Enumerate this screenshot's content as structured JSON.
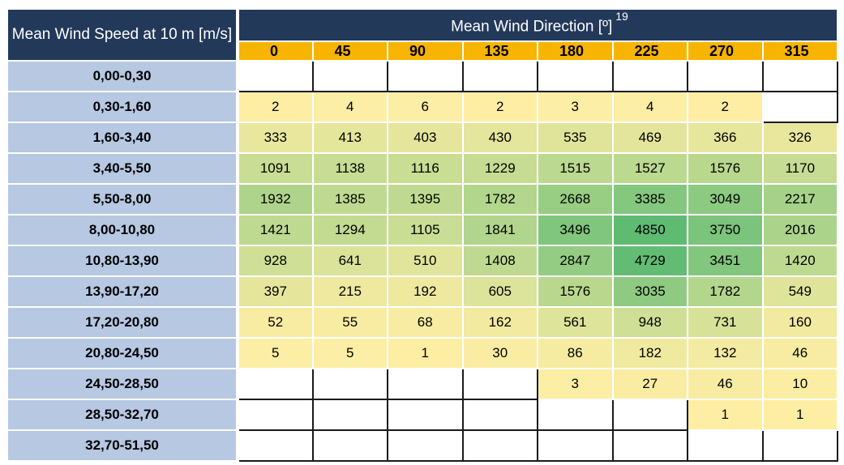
{
  "table": {
    "corner_label": "Mean Wind Speed at 10 m [m/s]",
    "header_label": "Mean Wind Direction [º]",
    "footnote": "19",
    "directions": [
      "0",
      "45",
      "90",
      "135",
      "180",
      "225",
      "270",
      "315"
    ],
    "rows": [
      {
        "speed": "0,00-0,30",
        "values": [
          "",
          "",
          "",
          "",
          "",
          "",
          "",
          ""
        ]
      },
      {
        "speed": "0,30-1,60",
        "values": [
          "2",
          "4",
          "6",
          "2",
          "3",
          "4",
          "2",
          ""
        ]
      },
      {
        "speed": "1,60-3,40",
        "values": [
          "333",
          "413",
          "403",
          "430",
          "535",
          "469",
          "366",
          "326"
        ]
      },
      {
        "speed": "3,40-5,50",
        "values": [
          "1091",
          "1138",
          "1116",
          "1229",
          "1515",
          "1527",
          "1576",
          "1170"
        ]
      },
      {
        "speed": "5,50-8,00",
        "values": [
          "1932",
          "1385",
          "1395",
          "1782",
          "2668",
          "3385",
          "3049",
          "2217"
        ]
      },
      {
        "speed": "8,00-10,80",
        "values": [
          "1421",
          "1294",
          "1105",
          "1841",
          "3496",
          "4850",
          "3750",
          "2016"
        ]
      },
      {
        "speed": "10,80-13,90",
        "values": [
          "928",
          "641",
          "510",
          "1408",
          "2847",
          "4729",
          "3451",
          "1420"
        ]
      },
      {
        "speed": "13,90-17,20",
        "values": [
          "397",
          "215",
          "192",
          "605",
          "1576",
          "3035",
          "1782",
          "549"
        ]
      },
      {
        "speed": "17,20-20,80",
        "values": [
          "52",
          "55",
          "68",
          "162",
          "561",
          "948",
          "731",
          "160"
        ]
      },
      {
        "speed": "20,80-24,50",
        "values": [
          "5",
          "5",
          "1",
          "30",
          "86",
          "182",
          "132",
          "46"
        ]
      },
      {
        "speed": "24,50-28,50",
        "values": [
          "",
          "",
          "",
          "",
          "3",
          "27",
          "46",
          "10"
        ]
      },
      {
        "speed": "28,50-32,70",
        "values": [
          "",
          "",
          "",
          "",
          "",
          "",
          "1",
          "1"
        ]
      },
      {
        "speed": "32,70-51,50",
        "values": [
          "",
          "",
          "",
          "",
          "",
          "",
          "",
          ""
        ]
      }
    ]
  },
  "colors": {
    "header_bg": "#22395a",
    "direction_bg": "#f7b400",
    "speed_bg": "#b6c8e2",
    "low": "#fdeea4",
    "high": "#5fbb72"
  }
}
